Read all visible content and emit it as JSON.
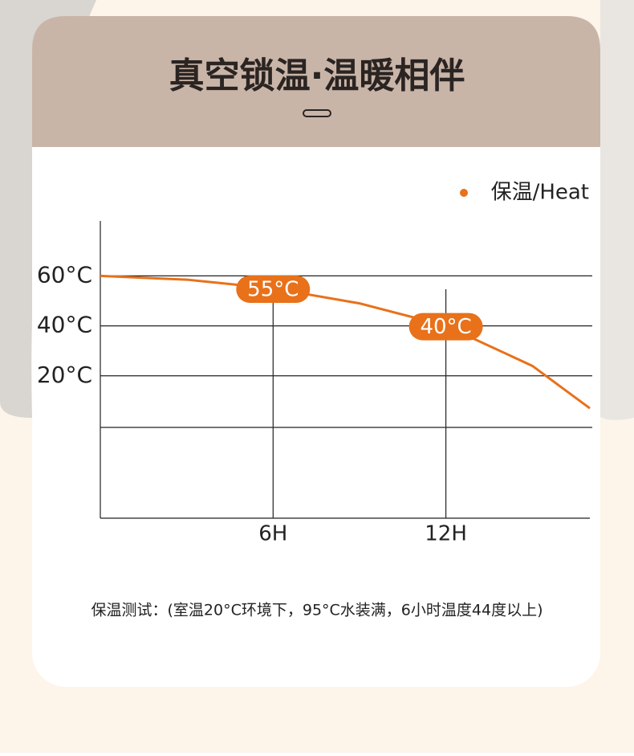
{
  "header": {
    "title": "真空锁温·温暖相伴"
  },
  "chart_data": {
    "type": "line",
    "x": [
      0,
      3,
      6,
      9,
      12,
      15,
      17
    ],
    "series": [
      {
        "name": "保温/Heat",
        "color": "#e8711a",
        "values": [
          60,
          58.5,
          55,
          49,
          40,
          24,
          7
        ],
        "value_labels": [
          null,
          null,
          "55°C",
          null,
          "40°C",
          null,
          null
        ]
      }
    ],
    "xlim": [
      0,
      17
    ],
    "xticks": [
      {
        "value": 6,
        "label": "6H"
      },
      {
        "value": 12,
        "label": "12H"
      }
    ],
    "ylim": [
      -37,
      82
    ],
    "yticks": [
      {
        "value": 60,
        "label": "60°C"
      },
      {
        "value": 40,
        "label": "40°C"
      },
      {
        "value": 20,
        "label": "20°C"
      }
    ],
    "grid": true,
    "legend": "top-right"
  },
  "footnote": "保温测试：(室温20°C环境下，95°C水装满，6小时温度44度以上)"
}
